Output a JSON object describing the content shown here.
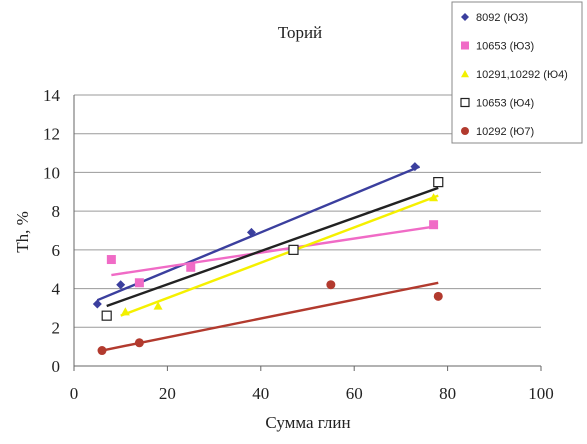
{
  "chart_data": {
    "type": "scatter",
    "title": "Торий",
    "xlabel": "Сумма глин",
    "ylabel": "Th, %",
    "xlim": [
      0,
      100
    ],
    "ylim": [
      0,
      14
    ],
    "x_ticks": [
      0,
      20,
      40,
      60,
      80,
      100
    ],
    "y_ticks": [
      0,
      2,
      4,
      6,
      8,
      10,
      12,
      14
    ],
    "grid": "horizontal",
    "legend_position": "top-right",
    "series": [
      {
        "name": "8092 (Ю3)",
        "color": "#3b3f9e",
        "marker": "diamond",
        "points": [
          [
            5,
            3.2
          ],
          [
            10,
            4.2
          ],
          [
            38,
            6.9
          ],
          [
            73,
            10.3
          ]
        ],
        "trend": [
          [
            5,
            3.4
          ],
          [
            74,
            10.3
          ]
        ]
      },
      {
        "name": "10653 (Ю3)",
        "color": "#f06bc6",
        "marker": "square",
        "points": [
          [
            8,
            5.5
          ],
          [
            14,
            4.3
          ],
          [
            25,
            5.1
          ],
          [
            77,
            7.3
          ]
        ],
        "trend": [
          [
            8,
            4.7
          ],
          [
            77,
            7.2
          ]
        ]
      },
      {
        "name": "10291,10292 (Ю4)",
        "color": "#f2f000",
        "marker": "triangle",
        "points": [
          [
            11,
            2.8
          ],
          [
            18,
            3.1
          ],
          [
            77,
            8.7
          ]
        ],
        "trend": [
          [
            10,
            2.6
          ],
          [
            78,
            8.8
          ]
        ]
      },
      {
        "name": "10653 (Ю4)",
        "color": "#222222",
        "marker": "open-square",
        "points": [
          [
            7,
            2.6
          ],
          [
            47,
            6.0
          ],
          [
            78,
            9.5
          ]
        ],
        "trend": [
          [
            7,
            3.1
          ],
          [
            78,
            9.2
          ]
        ]
      },
      {
        "name": "10292 (Ю7)",
        "color": "#b23a2e",
        "marker": "circle",
        "points": [
          [
            6,
            0.8
          ],
          [
            14,
            1.2
          ],
          [
            55,
            4.2
          ],
          [
            78,
            3.6
          ]
        ],
        "trend": [
          [
            6,
            0.8
          ],
          [
            78,
            4.3
          ]
        ]
      }
    ]
  }
}
